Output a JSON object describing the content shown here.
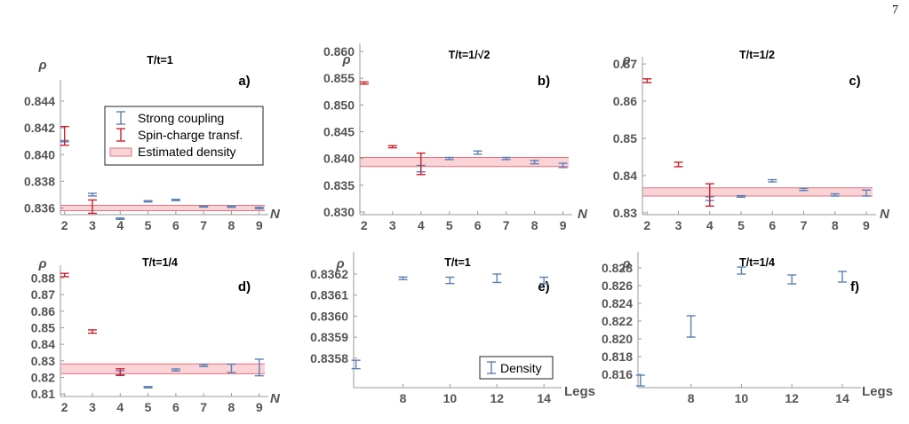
{
  "page_number": "7",
  "colors": {
    "strong": "#5b7fb5",
    "spin": "#cc1f2d",
    "band_fill": "#f9d3d6",
    "band_line": "#e8707a",
    "axis": "#9a9a9a"
  },
  "legend_main": {
    "strong": "Strong coupling",
    "spin": "Spin-charge transf.",
    "band": "Estimated density"
  },
  "legend_density": "Density",
  "chart_data": [
    {
      "id": "a",
      "panel_label": "a)",
      "title": "T/t=1",
      "type": "scatter",
      "ylabel": "ρ",
      "xlabel": "N",
      "xlim": [
        1.85,
        9.2
      ],
      "ylim": [
        0.8355,
        0.8452
      ],
      "xticks": [
        "2",
        "3",
        "4",
        "5",
        "6",
        "7",
        "8",
        "9"
      ],
      "yticks": [
        "0.836",
        "0.838",
        "0.840",
        "0.842",
        "0.844"
      ],
      "band": [
        0.8358,
        0.8362
      ],
      "series": [
        {
          "name": "Strong coupling",
          "x": [
            2,
            3,
            4,
            5,
            6,
            7,
            8,
            9
          ],
          "y": [
            0.841,
            0.837,
            0.8352,
            0.8365,
            0.8366,
            0.8361,
            0.8361,
            0.836
          ],
          "err": [
            5e-05,
            0.0001,
            5e-05,
            5e-05,
            5e-05,
            3e-05,
            5e-05,
            5e-05
          ]
        },
        {
          "name": "Spin-charge transf.",
          "x": [
            2,
            3
          ],
          "y": [
            0.8414,
            0.8361
          ],
          "err": [
            0.0007,
            0.0005
          ]
        }
      ],
      "legend": true
    },
    {
      "id": "b",
      "panel_label": "b)",
      "title": "T/t=1/√2",
      "type": "scatter",
      "ylabel": "ρ",
      "xlabel": "N",
      "xlim": [
        1.85,
        9.2
      ],
      "ylim": [
        0.8295,
        0.8605
      ],
      "xticks": [
        "2",
        "3",
        "4",
        "5",
        "6",
        "7",
        "8",
        "9"
      ],
      "yticks": [
        "0.830",
        "0.835",
        "0.840",
        "0.845",
        "0.850",
        "0.855",
        "0.860"
      ],
      "band": [
        0.8385,
        0.8402
      ],
      "series": [
        {
          "name": "Strong coupling",
          "x": [
            4,
            5,
            6,
            7,
            8,
            9
          ],
          "y": [
            0.8381,
            0.84,
            0.8411,
            0.84,
            0.8393,
            0.8387
          ],
          "err": [
            0.0006,
            0.0002,
            0.0003,
            0.0002,
            0.0003,
            0.0004
          ]
        },
        {
          "name": "Spin-charge transf.",
          "x": [
            2,
            3,
            4
          ],
          "y": [
            0.8541,
            0.8422,
            0.839
          ],
          "err": [
            0.0002,
            0.0002,
            0.002
          ]
        }
      ]
    },
    {
      "id": "c",
      "panel_label": "c)",
      "title": "T/t=1/2",
      "type": "scatter",
      "ylabel": "ρ",
      "xlabel": "N",
      "xlim": [
        1.85,
        9.2
      ],
      "ylim": [
        0.8295,
        0.8705
      ],
      "xticks": [
        "2",
        "3",
        "4",
        "5",
        "6",
        "7",
        "8",
        "9"
      ],
      "yticks": [
        "0.83",
        "0.84",
        "0.85",
        "0.86",
        "0.87"
      ],
      "band": [
        0.8345,
        0.8367
      ],
      "series": [
        {
          "name": "Strong coupling",
          "x": [
            4,
            5,
            6,
            7,
            8,
            9
          ],
          "y": [
            0.8338,
            0.8344,
            0.8386,
            0.8363,
            0.8348,
            0.8353
          ],
          "err": [
            0.0005,
            0.0002,
            0.0003,
            0.0003,
            0.0003,
            0.0008
          ]
        },
        {
          "name": "Spin-charge transf.",
          "x": [
            2,
            3,
            4
          ],
          "y": [
            0.8655,
            0.843,
            0.8348
          ],
          "err": [
            0.0005,
            0.0006,
            0.003
          ]
        }
      ]
    },
    {
      "id": "d",
      "panel_label": "d)",
      "title": "T/t=1/4",
      "type": "scatter",
      "ylabel": "ρ",
      "xlabel": "N",
      "xlim": [
        1.85,
        9.2
      ],
      "ylim": [
        0.8085,
        0.8845
      ],
      "xticks": [
        "2",
        "3",
        "4",
        "5",
        "6",
        "7",
        "8",
        "9"
      ],
      "yticks": [
        "0.81",
        "0.82",
        "0.83",
        "0.84",
        "0.85",
        "0.86",
        "0.87",
        "0.88"
      ],
      "band": [
        0.8222,
        0.8282
      ],
      "series": [
        {
          "name": "Strong coupling",
          "x": [
            4,
            5,
            6,
            7,
            8,
            9
          ],
          "y": [
            0.8228,
            0.8141,
            0.8245,
            0.8272,
            0.8255,
            0.826
          ],
          "err": [
            0.0012,
            0.0004,
            0.0006,
            0.0006,
            0.0025,
            0.005
          ]
        },
        {
          "name": "Spin-charge transf.",
          "x": [
            2,
            3,
            4
          ],
          "y": [
            0.8818,
            0.8477,
            0.8232
          ],
          "err": [
            0.001,
            0.001,
            0.002
          ]
        }
      ]
    },
    {
      "id": "e",
      "panel_label": "e)",
      "title": "T/t=1",
      "type": "scatter",
      "ylabel": "ρ",
      "xlabel": "Legs",
      "xlim": [
        5.9,
        14.6
      ],
      "ylim": [
        0.83566,
        0.83628
      ],
      "xticks": [
        "8",
        "10",
        "12",
        "14"
      ],
      "yticks": [
        "0.8358",
        "0.8359",
        "0.8360",
        "0.8361",
        "0.8362"
      ],
      "series": [
        {
          "name": "Density",
          "x": [
            6,
            8,
            10,
            12,
            14
          ],
          "y": [
            0.83577,
            0.83618,
            0.83617,
            0.83618,
            0.83617
          ],
          "err": [
            2e-05,
            6e-06,
            1.5e-05,
            2e-05,
            1.5e-05
          ]
        }
      ],
      "legend": true
    },
    {
      "id": "f",
      "panel_label": "f)",
      "title": "T/t=1/4",
      "type": "scatter",
      "ylabel": "ρ",
      "xlabel": "Legs",
      "xlim": [
        5.9,
        14.6
      ],
      "ylim": [
        0.8145,
        0.8292
      ],
      "xticks": [
        "8",
        "10",
        "12",
        "14"
      ],
      "yticks": [
        "0.816",
        "0.818",
        "0.820",
        "0.822",
        "0.824",
        "0.826",
        "0.828"
      ],
      "series": [
        {
          "name": "Density",
          "x": [
            6,
            8,
            10,
            12,
            14
          ],
          "y": [
            0.8153,
            0.8214,
            0.8277,
            0.8267,
            0.827
          ],
          "err": [
            0.0006,
            0.0012,
            0.0004,
            0.0005,
            0.0006
          ]
        }
      ]
    }
  ]
}
